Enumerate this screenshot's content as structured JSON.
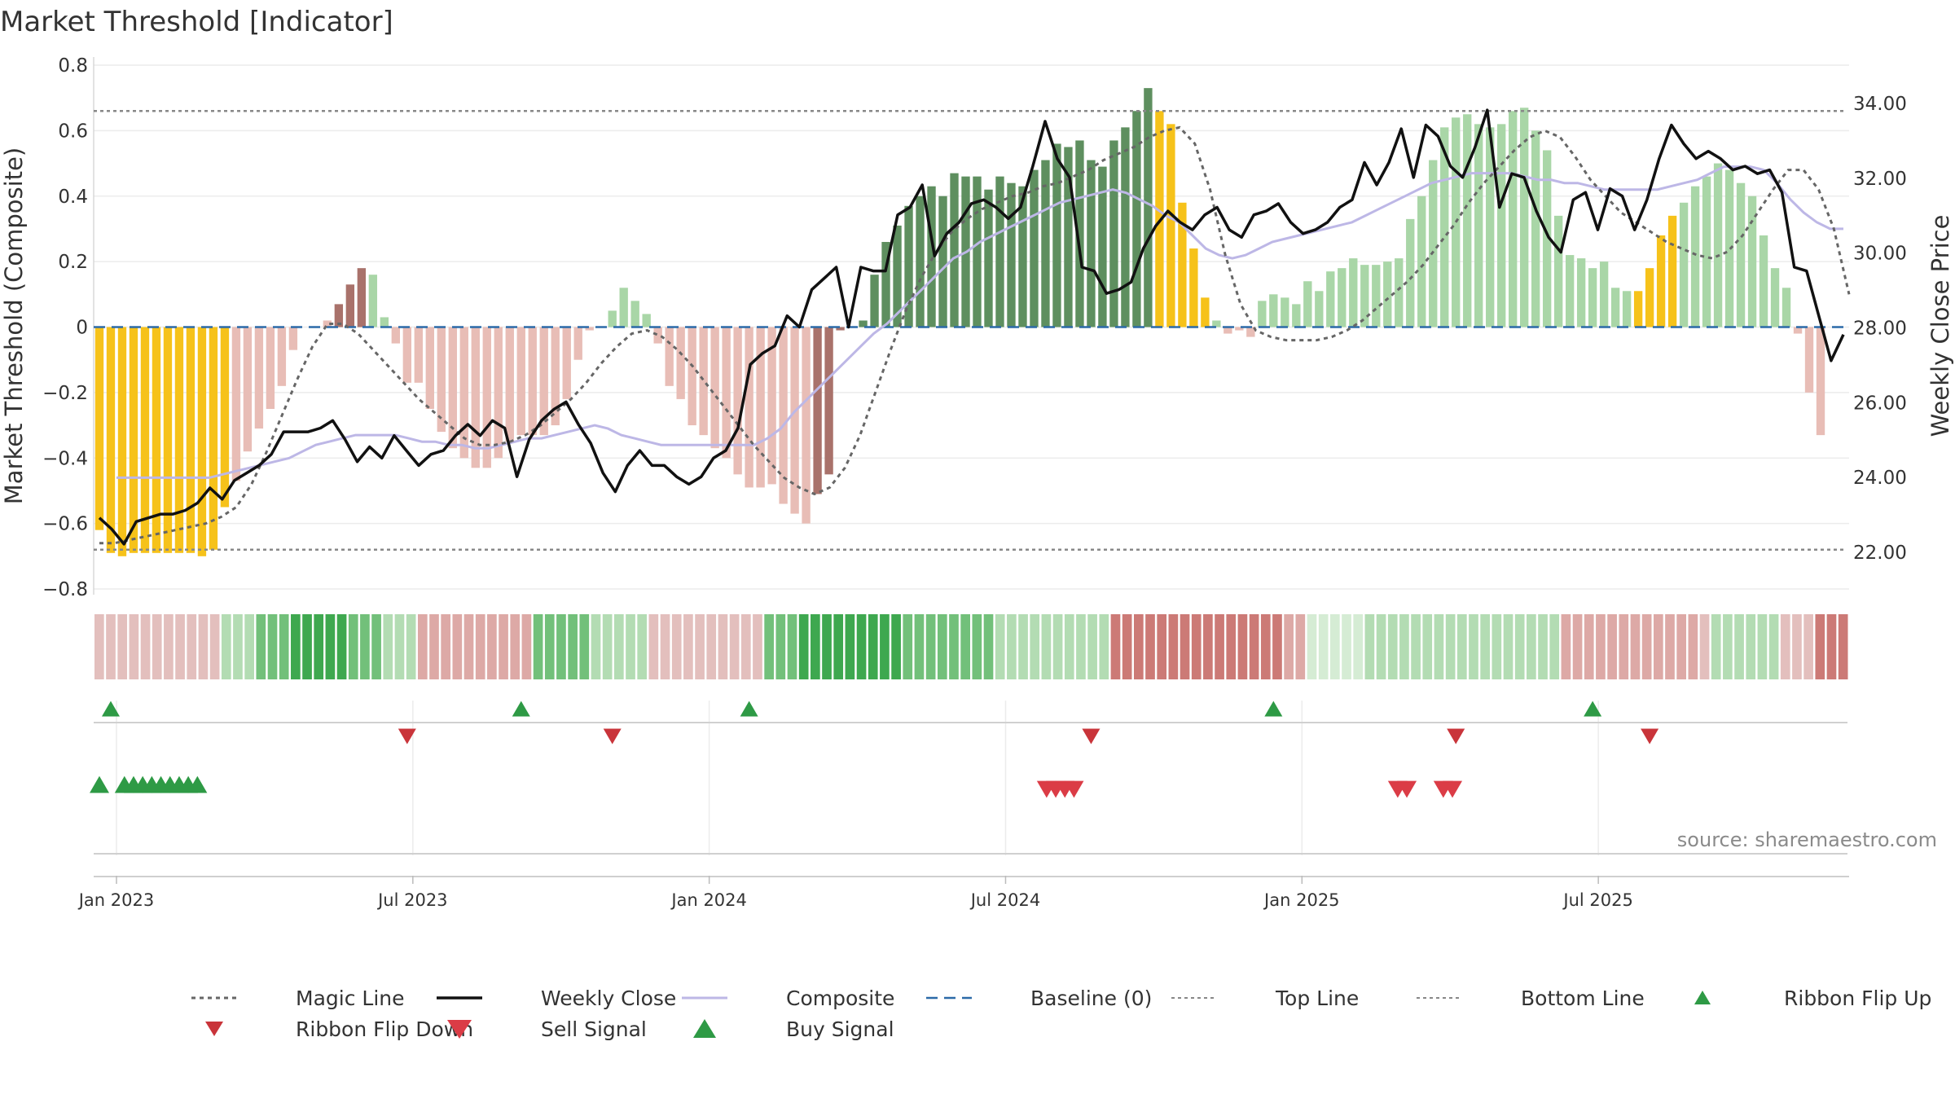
{
  "chart_data": {
    "type": "bar",
    "title": "Market Threshold [Indicator]",
    "ylabel_left": "Market Threshold (Composite)",
    "ylabel_right": "Weekly Close Price",
    "source": "source: sharemaestro.com",
    "ylim_left": [
      -0.8,
      0.8
    ],
    "ylim_right": [
      21,
      35
    ],
    "yticks_left": [
      0.8,
      0.6,
      0.4,
      0.2,
      0,
      -0.2,
      -0.4,
      -0.6,
      -0.8
    ],
    "yticks_left_labels": [
      "0.8",
      "0.6",
      "0.4",
      "0.2",
      "0",
      "−0.2",
      "−0.4",
      "−0.6",
      "−0.8"
    ],
    "yticks_right": [
      34,
      32,
      30,
      28,
      26,
      24,
      22
    ],
    "yticks_right_labels": [
      "34.00",
      "32.00",
      "30.00",
      "28.00",
      "26.00",
      "24.00",
      "22.00"
    ],
    "x_range_weeks": [
      0,
      154
    ],
    "xticks": [
      {
        "week": 2,
        "label": "Jan 2023"
      },
      {
        "week": 28,
        "label": "Jul 2023"
      },
      {
        "week": 54,
        "label": "Jan 2024"
      },
      {
        "week": 80,
        "label": "Jul 2024"
      },
      {
        "week": 106,
        "label": "Jan 2025"
      },
      {
        "week": 132,
        "label": "Jul 2025"
      }
    ],
    "top_line": 0.66,
    "bottom_line": -0.68,
    "baseline": 0,
    "bars": [
      -0.62,
      -0.69,
      -0.7,
      -0.69,
      -0.69,
      -0.69,
      -0.69,
      -0.69,
      -0.69,
      -0.7,
      -0.68,
      -0.55,
      -0.47,
      -0.38,
      -0.31,
      -0.25,
      -0.18,
      -0.07,
      0,
      0,
      0.02,
      0.07,
      0.13,
      0.18,
      0.16,
      0.03,
      -0.05,
      -0.17,
      -0.17,
      -0.25,
      -0.32,
      -0.37,
      -0.4,
      -0.43,
      -0.43,
      -0.4,
      -0.35,
      -0.33,
      -0.33,
      -0.33,
      -0.3,
      -0.22,
      -0.1,
      -0.01,
      0,
      0.05,
      0.12,
      0.08,
      0.04,
      -0.05,
      -0.18,
      -0.22,
      -0.3,
      -0.33,
      -0.37,
      -0.4,
      -0.45,
      -0.49,
      -0.49,
      -0.48,
      -0.54,
      -0.57,
      -0.6,
      -0.51,
      -0.45,
      -0.01,
      0,
      0.02,
      0.16,
      0.26,
      0.31,
      0.37,
      0.4,
      0.43,
      0.4,
      0.47,
      0.46,
      0.46,
      0.42,
      0.46,
      0.44,
      0.43,
      0.48,
      0.51,
      0.56,
      0.55,
      0.57,
      0.51,
      0.49,
      0.57,
      0.61,
      0.66,
      0.73,
      0.66,
      0.62,
      0.38,
      0.24,
      0.09,
      0.02,
      -0.02,
      -0.01,
      -0.03,
      0.08,
      0.1,
      0.09,
      0.07,
      0.14,
      0.11,
      0.17,
      0.18,
      0.21,
      0.19,
      0.19,
      0.2,
      0.21,
      0.33,
      0.4,
      0.51,
      0.61,
      0.64,
      0.65,
      0.62,
      0.61,
      0.62,
      0.66,
      0.67,
      0.6,
      0.54,
      0.34,
      0.22,
      0.21,
      0.18,
      0.2,
      0.12,
      0.11,
      0.11,
      0.18,
      0.28,
      0.34,
      0.38,
      0.43,
      0.46,
      0.5,
      0.48,
      0.44,
      0.4,
      0.28,
      0.18,
      0.12,
      -0.02,
      -0.2,
      -0.33
    ],
    "bar_class": "yyyyyyyyyyyypppppppppdddlllllllllllllpppllllllllllllllllpppppppggggggggggggggggggggggggggggggyyyyylllllllllllllllllllllllllllllllllllllyyyylllllllllllllllllllllllld",
    "weekly_close": [
      22.9,
      22.6,
      22.2,
      22.8,
      22.9,
      23.0,
      23.0,
      23.1,
      23.3,
      23.7,
      23.4,
      23.9,
      24.1,
      24.3,
      24.6,
      25.2,
      25.2,
      25.2,
      25.3,
      25.5,
      25.0,
      24.4,
      24.8,
      24.5,
      25.1,
      24.7,
      24.3,
      24.6,
      24.7,
      25.1,
      25.4,
      25.1,
      25.5,
      25.3,
      24.0,
      25.0,
      25.5,
      25.8,
      26.0,
      25.4,
      24.9,
      24.1,
      23.6,
      24.3,
      24.7,
      24.3,
      24.3,
      24.0,
      23.8,
      24.0,
      24.5,
      24.7,
      25.3,
      27.0,
      27.3,
      27.5,
      28.3,
      28.0,
      29.0,
      29.3,
      29.6,
      28.0,
      29.6,
      29.5,
      29.5,
      31.0,
      31.2,
      31.8,
      29.9,
      30.5,
      30.8,
      31.3,
      31.4,
      31.2,
      30.9,
      31.2,
      32.3,
      33.5,
      32.5,
      32.0,
      29.6,
      29.5,
      28.9,
      29.0,
      29.2,
      30.1,
      30.7,
      31.1,
      30.8,
      30.6,
      31.0,
      31.2,
      30.6,
      30.4,
      31.0,
      31.1,
      31.3,
      30.8,
      30.5,
      30.6,
      30.8,
      31.2,
      31.4,
      32.4,
      31.8,
      32.4,
      33.3,
      32.0,
      33.4,
      33.1,
      32.3,
      32.0,
      32.8,
      33.8,
      31.2,
      32.1,
      32.0,
      31.1,
      30.4,
      30.0,
      31.4,
      31.6,
      30.6,
      31.7,
      31.5,
      30.6,
      31.4,
      32.5,
      33.4,
      32.9,
      32.5,
      32.7,
      32.5,
      32.2,
      32.3,
      32.1,
      32.2,
      31.6,
      29.6,
      29.5,
      28.3,
      27.1,
      27.8
    ],
    "composite": [
      -0.46,
      -0.46,
      -0.46,
      -0.46,
      -0.46,
      -0.46,
      -0.46,
      -0.46,
      -0.45,
      -0.44,
      -0.43,
      -0.42,
      -0.41,
      -0.4,
      -0.38,
      -0.36,
      -0.35,
      -0.34,
      -0.33,
      -0.33,
      -0.33,
      -0.33,
      -0.34,
      -0.35,
      -0.35,
      -0.36,
      -0.36,
      -0.37,
      -0.37,
      -0.36,
      -0.35,
      -0.34,
      -0.34,
      -0.33,
      -0.32,
      -0.31,
      -0.3,
      -0.31,
      -0.33,
      -0.34,
      -0.35,
      -0.36,
      -0.36,
      -0.36,
      -0.36,
      -0.36,
      -0.36,
      -0.36,
      -0.36,
      -0.34,
      -0.31,
      -0.26,
      -0.22,
      -0.18,
      -0.14,
      -0.1,
      -0.06,
      -0.02,
      0.01,
      0.05,
      0.09,
      0.13,
      0.17,
      0.21,
      0.23,
      0.26,
      0.28,
      0.3,
      0.32,
      0.34,
      0.36,
      0.38,
      0.39,
      0.4,
      0.41,
      0.42,
      0.41,
      0.39,
      0.37,
      0.34,
      0.32,
      0.28,
      0.24,
      0.22,
      0.21,
      0.22,
      0.24,
      0.26,
      0.27,
      0.28,
      0.29,
      0.3,
      0.31,
      0.32,
      0.34,
      0.36,
      0.38,
      0.4,
      0.42,
      0.44,
      0.45,
      0.46,
      0.47,
      0.47,
      0.47,
      0.47,
      0.46,
      0.45,
      0.45,
      0.44,
      0.44,
      0.43,
      0.42,
      0.42,
      0.42,
      0.42,
      0.42,
      0.43,
      0.44,
      0.45,
      0.47,
      0.49,
      0.49,
      0.49,
      0.48,
      0.44,
      0.39,
      0.35,
      0.32,
      0.3,
      0.3
    ],
    "composite_start": 2,
    "magic": [
      -0.66,
      -0.66,
      -0.65,
      -0.64,
      -0.63,
      -0.62,
      -0.61,
      -0.6,
      -0.58,
      -0.55,
      -0.48,
      -0.38,
      -0.27,
      -0.16,
      -0.06,
      0.01,
      0.01,
      -0.02,
      -0.07,
      -0.12,
      -0.17,
      -0.22,
      -0.26,
      -0.3,
      -0.34,
      -0.36,
      -0.36,
      -0.35,
      -0.33,
      -0.3,
      -0.26,
      -0.22,
      -0.17,
      -0.11,
      -0.06,
      -0.02,
      -0.01,
      -0.03,
      -0.07,
      -0.12,
      -0.18,
      -0.24,
      -0.3,
      -0.36,
      -0.41,
      -0.46,
      -0.49,
      -0.51,
      -0.49,
      -0.43,
      -0.33,
      -0.2,
      -0.07,
      0.05,
      0.15,
      0.23,
      0.29,
      0.33,
      0.36,
      0.38,
      0.4,
      0.41,
      0.43,
      0.44,
      0.46,
      0.48,
      0.51,
      0.53,
      0.55,
      0.58,
      0.6,
      0.61,
      0.56,
      0.42,
      0.22,
      0.07,
      -0.01,
      -0.03,
      -0.04,
      -0.04,
      -0.04,
      -0.03,
      -0.01,
      0.02,
      0.06,
      0.1,
      0.14,
      0.19,
      0.25,
      0.31,
      0.38,
      0.44,
      0.49,
      0.54,
      0.58,
      0.6,
      0.58,
      0.52,
      0.45,
      0.4,
      0.35,
      0.32,
      0.29,
      0.26,
      0.24,
      0.22,
      0.21,
      0.23,
      0.28,
      0.35,
      0.42,
      0.48,
      0.48,
      0.42,
      0.3,
      0.1
    ],
    "magic_start": 0,
    "ribbon": [
      "sl",
      "sl",
      "sl",
      "sl",
      "sl",
      "sl",
      "sl",
      "sl",
      "sl",
      "sl",
      "sl",
      "gl",
      "gl",
      "gl",
      "gm",
      "gm",
      "gm",
      "gd",
      "gd",
      "gd",
      "gd",
      "gd",
      "gm",
      "gm",
      "gm",
      "gl",
      "gl",
      "gl",
      "rl",
      "rl",
      "rl",
      "rl",
      "rl",
      "rl",
      "rl",
      "rl",
      "rl",
      "rl",
      "gm",
      "gm",
      "gm",
      "gm",
      "gm",
      "gl",
      "gl",
      "gl",
      "gl",
      "gl",
      "sl",
      "sl",
      "sl",
      "sl",
      "sl",
      "sl",
      "sl",
      "sl",
      "sl",
      "sl",
      "gm",
      "gm",
      "gm",
      "gd",
      "gd",
      "gd",
      "gd",
      "gd",
      "gd",
      "gd",
      "gd",
      "gd",
      "gm",
      "gm",
      "gm",
      "gm",
      "gm",
      "gm",
      "gm",
      "gm",
      "gl",
      "gl",
      "gl",
      "gl",
      "gl",
      "gl",
      "gl",
      "gl",
      "gl",
      "gl",
      "rm",
      "rm",
      "rm",
      "rm",
      "rm",
      "rm",
      "rm",
      "rm",
      "rm",
      "rm",
      "rm",
      "rm",
      "rm",
      "rm",
      "rm",
      "rl",
      "rl",
      "sg",
      "sg",
      "sg",
      "sg",
      "sg",
      "gl",
      "gl",
      "gl",
      "gl",
      "gl",
      "gl",
      "gl",
      "gl",
      "gl",
      "gl",
      "gl",
      "gl",
      "gl",
      "gl",
      "gl",
      "gl",
      "gl",
      "rl",
      "rl",
      "rl",
      "rl",
      "rl",
      "rl",
      "rl",
      "rl",
      "rl",
      "rl",
      "rl",
      "rl",
      "sl",
      "gl",
      "gl",
      "gl",
      "gl",
      "gl",
      "gl",
      "sl",
      "sl",
      "sl",
      "rm",
      "rm",
      "rm"
    ],
    "ribbon_flip_up": [
      1,
      37,
      57,
      103,
      131
    ],
    "ribbon_flip_down": [
      27,
      45,
      87,
      119,
      136
    ],
    "buy_signal": [
      0.5,
      2.7,
      3.5,
      4.3,
      5.1,
      5.9,
      6.7,
      7.5,
      8.3,
      9.1
    ],
    "sell_signal": [
      83.6,
      84.4,
      85.2,
      86.0,
      114.4,
      115.2,
      118.4,
      119.2
    ],
    "legend": [
      {
        "label": "Magic Line",
        "kind": "dotted-line"
      },
      {
        "label": "Weekly Close",
        "kind": "solid-line"
      },
      {
        "label": "Composite",
        "kind": "lavender-line"
      },
      {
        "label": "Baseline (0)",
        "kind": "dashed-line"
      },
      {
        "label": "Top Line",
        "kind": "thin-dotted-line"
      },
      {
        "label": "Bottom Line",
        "kind": "thin-dotted-line"
      },
      {
        "label": "Ribbon Flip Up",
        "kind": "up-triangle"
      },
      {
        "label": "Ribbon Flip Down",
        "kind": "down-triangle-dark"
      },
      {
        "label": "Sell Signal",
        "kind": "down-triangle"
      },
      {
        "label": "Buy Signal",
        "kind": "up-triangle-large"
      }
    ],
    "colors": {
      "bar_yellow": "#f6c21a",
      "bar_pink": "#e8bdb6",
      "bar_rose": "#a9726b",
      "bar_dark_green": "#5e8f5f",
      "bar_light_green": "#a9d6a7",
      "bar_green": "#6e9d6c",
      "weekly_close": "#111111",
      "composite": "#bdb7e6",
      "magic": "#666666",
      "baseline": "#2b6aa8",
      "threshold": "#888888",
      "ribbon_sl": "#e3bfbd",
      "ribbon_gl": "#b3dcb3",
      "ribbon_gm": "#72c07a",
      "ribbon_gd": "#3ea84f",
      "ribbon_rl": "#dda9a6",
      "ribbon_rm": "#cc7a76",
      "ribbon_sg": "#d5ecd4",
      "flip_up": "#2e9a45",
      "flip_down": "#c9343a",
      "sell": "#db3c46",
      "buy": "#2e9a45"
    }
  }
}
